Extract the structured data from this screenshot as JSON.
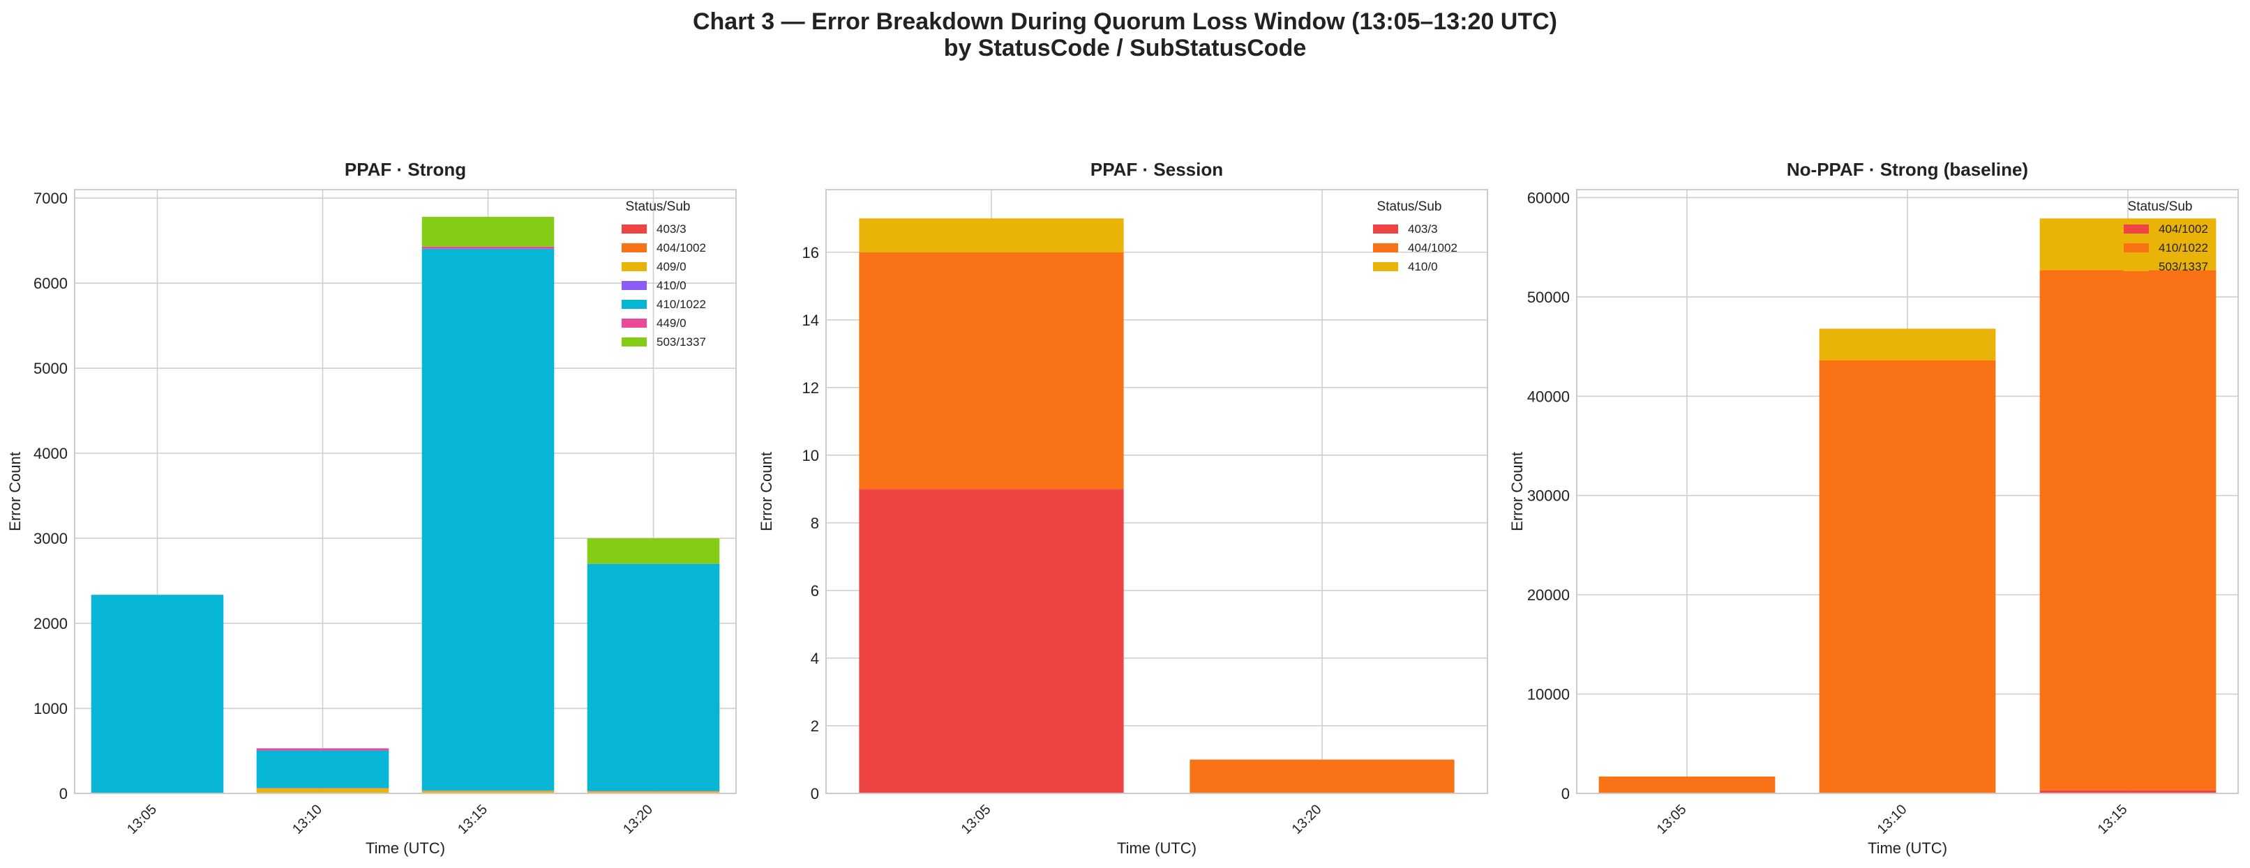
{
  "figure": {
    "title_line1": "Chart 3 — Error Breakdown During Quorum Loss Window (13:05–13:20 UTC)",
    "title_line2": "by StatusCode / SubStatusCode"
  },
  "colors": {
    "403/3": "#ef4444",
    "404/1002": "#f97316",
    "409/0": "#eab308",
    "410/0": "#8b5cf6",
    "410/1022": "#06b6d4",
    "449/0": "#ec4899",
    "503/1337": "#84cc16"
  },
  "chart_data": [
    {
      "type": "bar",
      "stacked": true,
      "title": "PPAF · Strong",
      "xlabel": "Time (UTC)",
      "ylabel": "Error Count",
      "categories": [
        "13:05",
        "13:10",
        "13:15",
        "13:20"
      ],
      "ylim": [
        0,
        7100
      ],
      "yticks": [
        0,
        1000,
        2000,
        3000,
        4000,
        5000,
        6000,
        7000
      ],
      "grid": true,
      "legend_title": "Status/Sub",
      "legend_position": "upper right",
      "series": [
        {
          "name": "403/3",
          "color": "#ef4444",
          "values": [
            0,
            0,
            0,
            0
          ]
        },
        {
          "name": "404/1002",
          "color": "#f97316",
          "values": [
            0,
            0,
            0,
            0
          ]
        },
        {
          "name": "409/0",
          "color": "#eab308",
          "values": [
            5,
            60,
            30,
            25
          ]
        },
        {
          "name": "410/0",
          "color": "#8b5cf6",
          "values": [
            0,
            5,
            5,
            5
          ]
        },
        {
          "name": "410/1022",
          "color": "#06b6d4",
          "values": [
            2330,
            440,
            6370,
            2670
          ]
        },
        {
          "name": "449/0",
          "color": "#ec4899",
          "values": [
            0,
            25,
            25,
            0
          ]
        },
        {
          "name": "503/1337",
          "color": "#84cc16",
          "values": [
            0,
            0,
            350,
            300
          ]
        }
      ]
    },
    {
      "type": "bar",
      "stacked": true,
      "title": "PPAF · Session",
      "xlabel": "Time (UTC)",
      "ylabel": "Error Count",
      "categories": [
        "13:05",
        "13:20"
      ],
      "ylim": [
        0,
        17.85
      ],
      "yticks": [
        0,
        2,
        4,
        6,
        8,
        10,
        12,
        14,
        16
      ],
      "grid": true,
      "legend_title": "Status/Sub",
      "legend_position": "upper right",
      "series": [
        {
          "name": "403/3",
          "color": "#ef4444",
          "values": [
            9,
            0
          ]
        },
        {
          "name": "404/1002",
          "color": "#f97316",
          "values": [
            7,
            1
          ]
        },
        {
          "name": "410/0",
          "color": "#eab308",
          "values": [
            1,
            0
          ]
        }
      ]
    },
    {
      "type": "bar",
      "stacked": true,
      "title": "No-PPAF · Strong (baseline)",
      "xlabel": "Time (UTC)",
      "ylabel": "Error Count",
      "categories": [
        "13:05",
        "13:10",
        "13:15"
      ],
      "ylim": [
        0,
        60800
      ],
      "yticks": [
        0,
        10000,
        20000,
        30000,
        40000,
        50000,
        60000
      ],
      "grid": true,
      "legend_title": "Status/Sub",
      "legend_position": "upper right",
      "series": [
        {
          "name": "404/1002",
          "color": "#ef4444",
          "values": [
            0,
            0,
            300
          ]
        },
        {
          "name": "410/1022",
          "color": "#f97316",
          "values": [
            1700,
            43600,
            52400
          ]
        },
        {
          "name": "503/1337",
          "color": "#eab308",
          "values": [
            0,
            3200,
            5200
          ]
        }
      ]
    }
  ]
}
